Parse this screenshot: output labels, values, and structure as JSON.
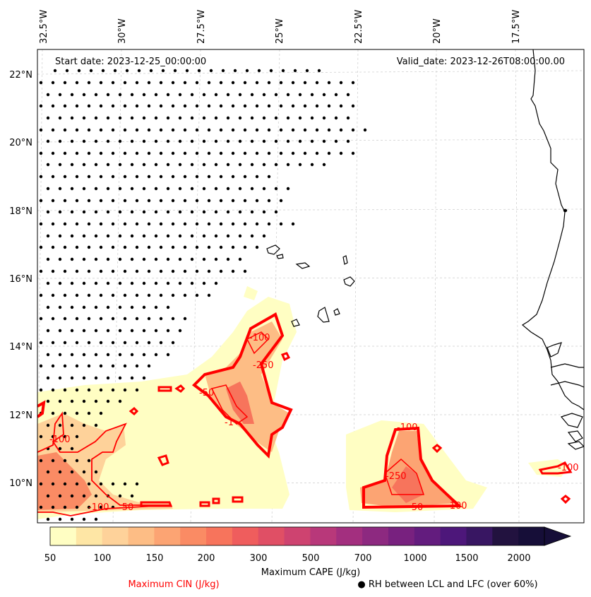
{
  "header": {
    "start_date": "Start date: 2023-12-25_00:00:00",
    "valid_date": "Valid_date: 2023-12-26T08:00:00.00"
  },
  "map": {
    "lon_ticks": [
      "32.5°W",
      "30°W",
      "27.5°W",
      "25°W",
      "22.5°W",
      "20°W",
      "17.5°W"
    ],
    "lat_ticks": [
      "22°N",
      "20°N",
      "18°N",
      "16°N",
      "14°N",
      "12°N",
      "10°N"
    ],
    "extent": {
      "lon": [
        -32.6,
        -15.6
      ],
      "lat": [
        8.9,
        22.7
      ]
    },
    "gridlines": true
  },
  "colorbar": {
    "label": "Maximum CAPE (J/kg)",
    "levels": [
      "50",
      "100",
      "150",
      "200",
      "300",
      "500",
      "700",
      "1000",
      "1500",
      "2000"
    ],
    "colors": [
      "#fffec3",
      "#fee6a5",
      "#fed29a",
      "#fdbd85",
      "#fca473",
      "#fa8b64",
      "#f7745c",
      "#ef5d5d",
      "#e04f65",
      "#ce4370",
      "#b8387a",
      "#a32f7f",
      "#8d2980",
      "#78217f",
      "#631c7e",
      "#4d177a",
      "#381662",
      "#22123f",
      "#160e38"
    ],
    "extend": "max"
  },
  "legend": {
    "cin_label": "Maximum CIN (J/kg)",
    "rh_label": "● RH between LCL and LFC (over 60%)"
  },
  "contour_labels": [
    {
      "text": "-100",
      "lon": -26.6,
      "lat": 14.2
    },
    {
      "text": "-250",
      "lon": -26.6,
      "lat": 13.1
    },
    {
      "text": "-50",
      "lon": -28.2,
      "lat": 12.3
    },
    {
      "text": "-1",
      "lon": -27.7,
      "lat": 11.8
    },
    {
      "text": "-100",
      "lon": -20.8,
      "lat": 11.7
    },
    {
      "text": "-250",
      "lon": -21.2,
      "lat": 10.5
    },
    {
      "text": "-50",
      "lon": -20.9,
      "lat": 9.3
    },
    {
      "text": "-100",
      "lon": -19.5,
      "lat": 9.3
    },
    {
      "text": "-100",
      "lon": -31.8,
      "lat": 11.2
    },
    {
      "text": "-100",
      "lon": -30.2,
      "lat": 9.3
    },
    {
      "text": "-50",
      "lon": -29.4,
      "lat": 9.3
    },
    {
      "text": "-100",
      "lon": -15.9,
      "lat": 10.3
    }
  ]
}
